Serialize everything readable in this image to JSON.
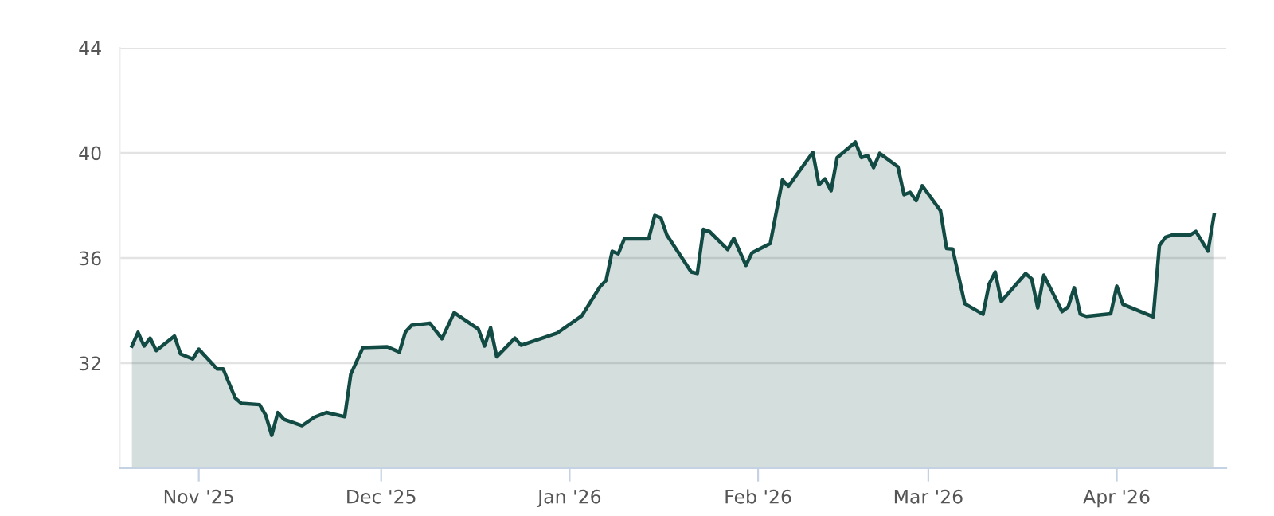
{
  "chart_data": {
    "type": "area",
    "color": "#124a44",
    "x": [
      "2025-10-21",
      "2025-10-22",
      "2025-10-23",
      "2025-10-24",
      "2025-10-25",
      "2025-10-28",
      "2025-10-29",
      "2025-10-31",
      "2025-11-01",
      "2025-11-04",
      "2025-11-05",
      "2025-11-07",
      "2025-11-08",
      "2025-11-11",
      "2025-11-12",
      "2025-11-13",
      "2025-11-14",
      "2025-11-15",
      "2025-11-18",
      "2025-11-20",
      "2025-11-22",
      "2025-11-25",
      "2025-11-26",
      "2025-11-28",
      "2025-12-02",
      "2025-12-04",
      "2025-12-05",
      "2025-12-06",
      "2025-12-09",
      "2025-12-11",
      "2025-12-13",
      "2025-12-17",
      "2025-12-18",
      "2025-12-19",
      "2025-12-20",
      "2025-12-23",
      "2025-12-24",
      "2025-12-30",
      "2026-01-03",
      "2026-01-06",
      "2026-01-07",
      "2026-01-08",
      "2026-01-09",
      "2026-01-10",
      "2026-01-14",
      "2026-01-15",
      "2026-01-16",
      "2026-01-17",
      "2026-01-21",
      "2026-01-22",
      "2026-01-23",
      "2026-01-24",
      "2026-01-27",
      "2026-01-28",
      "2026-01-30",
      "2026-01-31",
      "2026-02-03",
      "2026-02-05",
      "2026-02-06",
      "2026-02-10",
      "2026-02-11",
      "2026-02-12",
      "2026-02-13",
      "2026-02-14",
      "2026-02-17",
      "2026-02-18",
      "2026-02-19",
      "2026-02-20",
      "2026-02-21",
      "2026-02-24",
      "2026-02-25",
      "2026-02-26",
      "2026-02-27",
      "2026-02-28",
      "2026-03-03",
      "2026-03-04",
      "2026-03-05",
      "2026-03-07",
      "2026-03-10",
      "2026-03-11",
      "2026-03-12",
      "2026-03-13",
      "2026-03-17",
      "2026-03-18",
      "2026-03-19",
      "2026-03-20",
      "2026-03-23",
      "2026-03-24",
      "2026-03-25",
      "2026-03-26",
      "2026-03-27",
      "2026-03-31",
      "2026-04-01",
      "2026-04-02",
      "2026-04-07",
      "2026-04-08",
      "2026-04-09",
      "2026-04-10",
      "2026-04-13",
      "2026-04-14",
      "2026-04-16",
      "2026-04-17"
    ],
    "values": [
      32.65,
      33.17,
      32.65,
      32.95,
      32.48,
      33.03,
      32.35,
      32.16,
      32.53,
      31.78,
      31.78,
      30.67,
      30.47,
      30.42,
      30.02,
      29.25,
      30.12,
      29.86,
      29.62,
      29.94,
      30.12,
      29.96,
      31.58,
      32.59,
      32.62,
      32.42,
      33.19,
      33.44,
      33.52,
      32.93,
      33.92,
      33.29,
      32.65,
      33.35,
      32.24,
      32.95,
      32.68,
      33.15,
      33.8,
      34.91,
      35.15,
      36.26,
      36.16,
      36.73,
      36.73,
      37.62,
      37.53,
      36.87,
      35.47,
      35.41,
      37.09,
      37.01,
      36.32,
      36.75,
      35.72,
      36.2,
      36.55,
      38.97,
      38.73,
      40.02,
      38.79,
      39.01,
      38.56,
      39.82,
      40.41,
      39.82,
      39.9,
      39.44,
      39.98,
      39.47,
      38.41,
      38.5,
      38.18,
      38.75,
      37.8,
      36.36,
      36.34,
      34.26,
      33.86,
      35.01,
      35.47,
      34.35,
      35.41,
      35.21,
      34.1,
      35.35,
      33.96,
      34.14,
      34.87,
      33.86,
      33.78,
      33.88,
      34.93,
      34.24,
      33.76,
      36.47,
      36.79,
      36.87,
      36.87,
      37.01,
      36.26,
      37.64
    ],
    "xlim": [
      "2025-10-19",
      "2026-04-19"
    ],
    "xticks": [
      {
        "value": "2025-11-01",
        "label": "Nov '25"
      },
      {
        "value": "2025-12-01",
        "label": "Dec '25"
      },
      {
        "value": "2026-01-01",
        "label": "Jan '26"
      },
      {
        "value": "2026-02-01",
        "label": "Feb '26"
      },
      {
        "value": "2026-03-01",
        "label": "Mar '26"
      },
      {
        "value": "2026-04-01",
        "label": "Apr '26"
      }
    ],
    "ylim": [
      28,
      44
    ],
    "yticks": [
      32,
      36,
      40,
      44
    ],
    "grid": "y",
    "marker": "none",
    "line_style": "solid"
  }
}
